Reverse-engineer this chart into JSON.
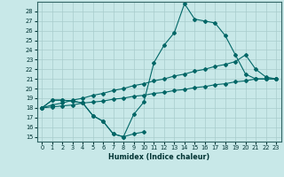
{
  "xlabel": "Humidex (Indice chaleur)",
  "bg_color": "#c8e8e8",
  "line_color": "#006666",
  "grid_color": "#a8cccc",
  "xlim": [
    -0.5,
    23.5
  ],
  "ylim": [
    14.5,
    29.0
  ],
  "yticks": [
    15,
    16,
    17,
    18,
    19,
    20,
    21,
    22,
    23,
    24,
    25,
    26,
    27,
    28
  ],
  "xticks": [
    0,
    1,
    2,
    3,
    4,
    5,
    6,
    7,
    8,
    9,
    10,
    11,
    12,
    13,
    14,
    15,
    16,
    17,
    18,
    19,
    20,
    21,
    22,
    23
  ],
  "curve1_x": [
    0,
    1,
    2,
    3,
    4,
    5,
    6,
    7,
    8,
    9,
    10
  ],
  "curve1_y": [
    18.0,
    18.8,
    18.8,
    18.7,
    18.5,
    17.2,
    16.6,
    15.3,
    15.0,
    15.3,
    15.5
  ],
  "curve2_x": [
    0,
    1,
    2,
    3,
    4,
    5,
    6,
    7,
    8,
    9,
    10,
    11,
    12,
    13,
    14,
    15,
    16,
    17,
    18,
    19,
    20,
    21,
    22,
    23
  ],
  "curve2_y": [
    18.0,
    18.8,
    18.8,
    18.7,
    18.5,
    17.2,
    16.6,
    15.3,
    15.0,
    17.3,
    18.6,
    22.7,
    24.5,
    25.8,
    28.8,
    27.2,
    27.0,
    26.8,
    25.5,
    23.5,
    21.5,
    21.0,
    21.0,
    21.0
  ],
  "line_upper_x": [
    0,
    1,
    2,
    3,
    4,
    5,
    6,
    7,
    8,
    9,
    10,
    11,
    12,
    13,
    14,
    15,
    16,
    17,
    18,
    19,
    20,
    21,
    22,
    23
  ],
  "line_upper_y": [
    18.0,
    18.3,
    18.5,
    18.8,
    19.0,
    19.3,
    19.5,
    19.8,
    20.0,
    20.3,
    20.5,
    20.8,
    21.0,
    21.3,
    21.5,
    21.8,
    22.0,
    22.3,
    22.5,
    22.8,
    23.5,
    22.0,
    21.2,
    21.0
  ],
  "line_lower_x": [
    0,
    1,
    2,
    3,
    4,
    5,
    6,
    7,
    8,
    9,
    10,
    11,
    12,
    13,
    14,
    15,
    16,
    17,
    18,
    19,
    20,
    21,
    22,
    23
  ],
  "line_lower_y": [
    18.0,
    18.1,
    18.2,
    18.3,
    18.5,
    18.6,
    18.7,
    18.9,
    19.0,
    19.2,
    19.3,
    19.5,
    19.6,
    19.8,
    19.9,
    20.1,
    20.2,
    20.4,
    20.5,
    20.7,
    20.8,
    21.0,
    21.0,
    21.0
  ]
}
